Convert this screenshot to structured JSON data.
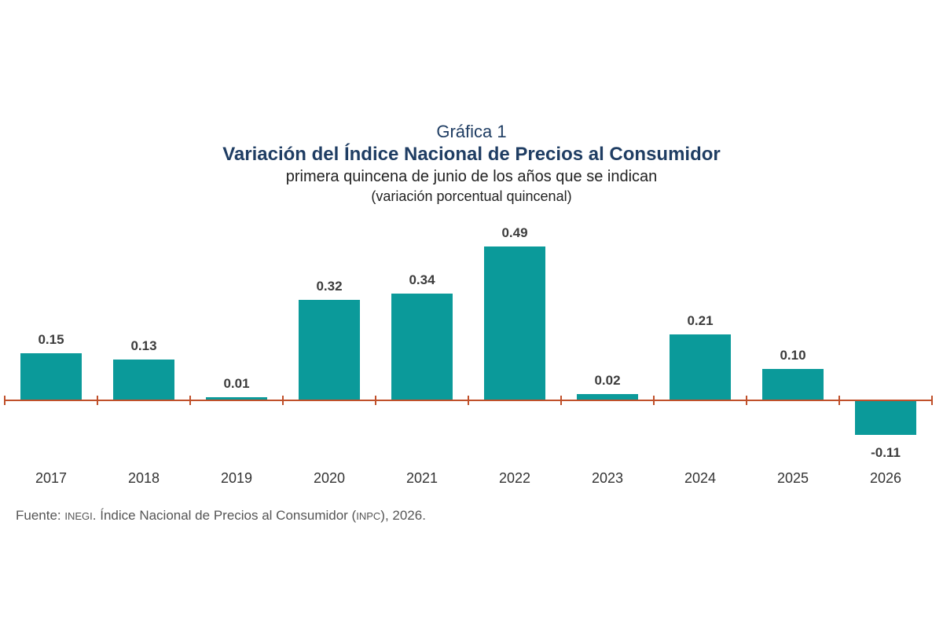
{
  "header": {
    "label": "Gráfica 1",
    "title": "Variación del Índice Nacional de Precios al Consumidor",
    "subtitle": "primera quincena de junio de los años que se indican",
    "units": "(variación porcentual quincenal)"
  },
  "source": {
    "prefix": "Fuente: ",
    "org": "INEGI",
    "mid": ". Índice Nacional de Precios al Consumidor (",
    "abbr": "INPC",
    "suffix": "), 2026."
  },
  "colors": {
    "bar": "#0b9a9a",
    "axis": "#c0502a"
  },
  "chart_data": {
    "type": "bar",
    "title": "Variación del Índice Nacional de Precios al Consumidor",
    "subtitle": "primera quincena de junio de los años que se indican",
    "ylabel": "(variación porcentual quincenal)",
    "xlabel": "",
    "categories": [
      "2017",
      "2018",
      "2019",
      "2020",
      "2021",
      "2022",
      "2023",
      "2024",
      "2025",
      "2026"
    ],
    "values": [
      0.15,
      0.13,
      0.01,
      0.32,
      0.34,
      0.49,
      0.02,
      0.21,
      0.1,
      -0.11
    ],
    "value_labels": [
      "0.15",
      "0.13",
      "0.01",
      "0.32",
      "0.34",
      "0.49",
      "0.02",
      "0.21",
      "0.10",
      "-0.11"
    ],
    "ylim": [
      -0.11,
      0.49
    ],
    "grid": false,
    "legend": "none"
  }
}
